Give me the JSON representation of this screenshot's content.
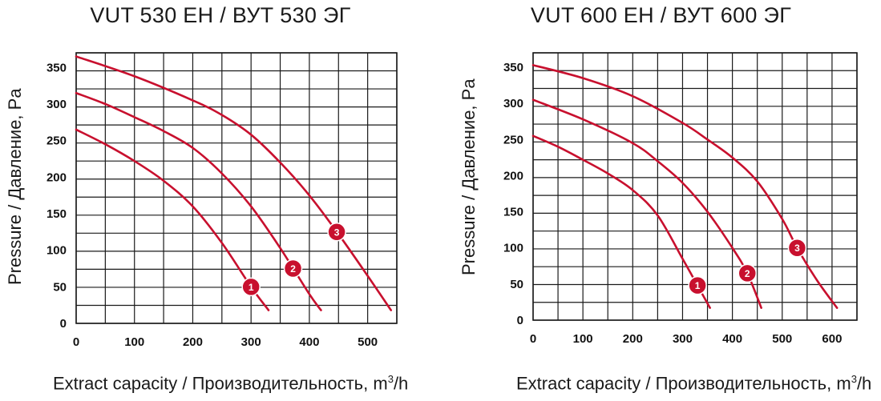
{
  "chart_data": [
    {
      "type": "line",
      "title": "VUT 530 EH / ВУТ 530 ЭГ",
      "xlabel": "Extract capacity / Производительность, m",
      "xlabel_sup": "3",
      "xlabel_suffix": "/h",
      "ylabel": "Pressure / Давление, Pa",
      "xlim": [
        0,
        550
      ],
      "ylim": [
        0,
        370
      ],
      "xticks": [
        0,
        100,
        200,
        300,
        400,
        500
      ],
      "yticks": [
        0,
        50,
        100,
        150,
        200,
        250,
        300,
        350
      ],
      "grid": true,
      "line_color": "#c8102e",
      "series": [
        {
          "name": "1",
          "x": [
            0,
            50,
            100,
            150,
            200,
            250,
            300,
            330
          ],
          "y": [
            265,
            245,
            222,
            195,
            160,
            110,
            50,
            18
          ],
          "marker_x": 300,
          "marker_y": 50
        },
        {
          "name": "2",
          "x": [
            0,
            50,
            100,
            150,
            200,
            250,
            300,
            350,
            400,
            420
          ],
          "y": [
            315,
            300,
            282,
            263,
            240,
            205,
            160,
            103,
            40,
            18
          ],
          "marker_x": 372,
          "marker_y": 75
        },
        {
          "name": "3",
          "x": [
            0,
            100,
            200,
            250,
            300,
            350,
            400,
            450,
            500,
            540
          ],
          "y": [
            365,
            338,
            305,
            285,
            258,
            220,
            175,
            122,
            65,
            18
          ],
          "marker_x": 447,
          "marker_y": 125
        }
      ]
    },
    {
      "type": "line",
      "title": "VUT 600 EH / ВУТ 600 ЭГ",
      "xlabel": "Extract capacity / Производительность, m",
      "xlabel_sup": "3",
      "xlabel_suffix": "/h",
      "ylabel": "Pressure / Давление, Pa",
      "xlim": [
        0,
        650
      ],
      "ylim": [
        0,
        370
      ],
      "xticks": [
        0,
        100,
        200,
        300,
        400,
        500,
        600
      ],
      "yticks": [
        0,
        50,
        100,
        150,
        200,
        250,
        300,
        350
      ],
      "grid": true,
      "line_color": "#c8102e",
      "series": [
        {
          "name": "1",
          "x": [
            0,
            50,
            100,
            150,
            200,
            250,
            300,
            330,
            355
          ],
          "y": [
            255,
            240,
            222,
            203,
            180,
            145,
            85,
            48,
            17
          ],
          "marker_x": 330,
          "marker_y": 48
        },
        {
          "name": "2",
          "x": [
            0,
            100,
            200,
            250,
            300,
            350,
            400,
            430,
            458
          ],
          "y": [
            305,
            278,
            245,
            220,
            190,
            150,
            100,
            65,
            17
          ],
          "marker_x": 430,
          "marker_y": 65
        },
        {
          "name": "3",
          "x": [
            0,
            100,
            200,
            300,
            350,
            400,
            450,
            500,
            530,
            570,
            610
          ],
          "y": [
            353,
            335,
            310,
            273,
            250,
            225,
            192,
            140,
            100,
            55,
            17
          ],
          "marker_x": 530,
          "marker_y": 100
        }
      ]
    }
  ]
}
